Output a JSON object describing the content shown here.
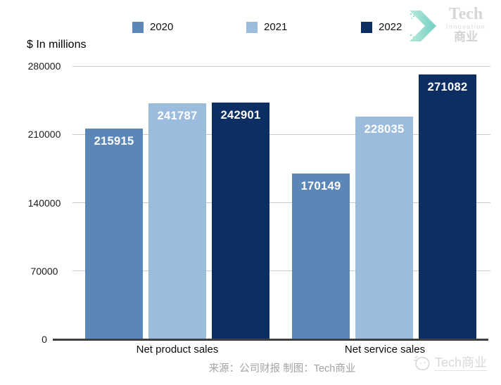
{
  "header": {
    "legend": [
      {
        "label": "2020",
        "color": "#5b87b8"
      },
      {
        "label": "2021",
        "color": "#9cbcde"
      },
      {
        "label": "2022",
        "color": "#0d2e62"
      }
    ],
    "logo": {
      "line1": "Tech",
      "line2": "Innovation",
      "line3": "商业",
      "arrow_color_light": "#b9ead9",
      "arrow_color_dark": "#72cfc3"
    }
  },
  "chart_data": {
    "type": "bar",
    "title": "",
    "unit_label": "$ In millions",
    "categories": [
      "Net product sales",
      "Net service sales"
    ],
    "series": [
      {
        "name": "2020",
        "color": "#5b87b8",
        "values": [
          215915,
          170149
        ]
      },
      {
        "name": "2021",
        "color": "#9cbcde",
        "values": [
          241787,
          228035
        ]
      },
      {
        "name": "2022",
        "color": "#0d2e62",
        "values": [
          242901,
          271082
        ]
      }
    ],
    "ylim": [
      0,
      280000
    ],
    "yticks": [
      0,
      70000,
      140000,
      210000,
      280000
    ],
    "grid": true,
    "legend_position": "top",
    "value_labels": "inside-top",
    "gridline_color": "#cacaca",
    "axis_color": "#3f3f3f"
  },
  "footer": {
    "source_text": "来源：公司财报 制图：Tech商业",
    "watermark": "Tech商业"
  }
}
